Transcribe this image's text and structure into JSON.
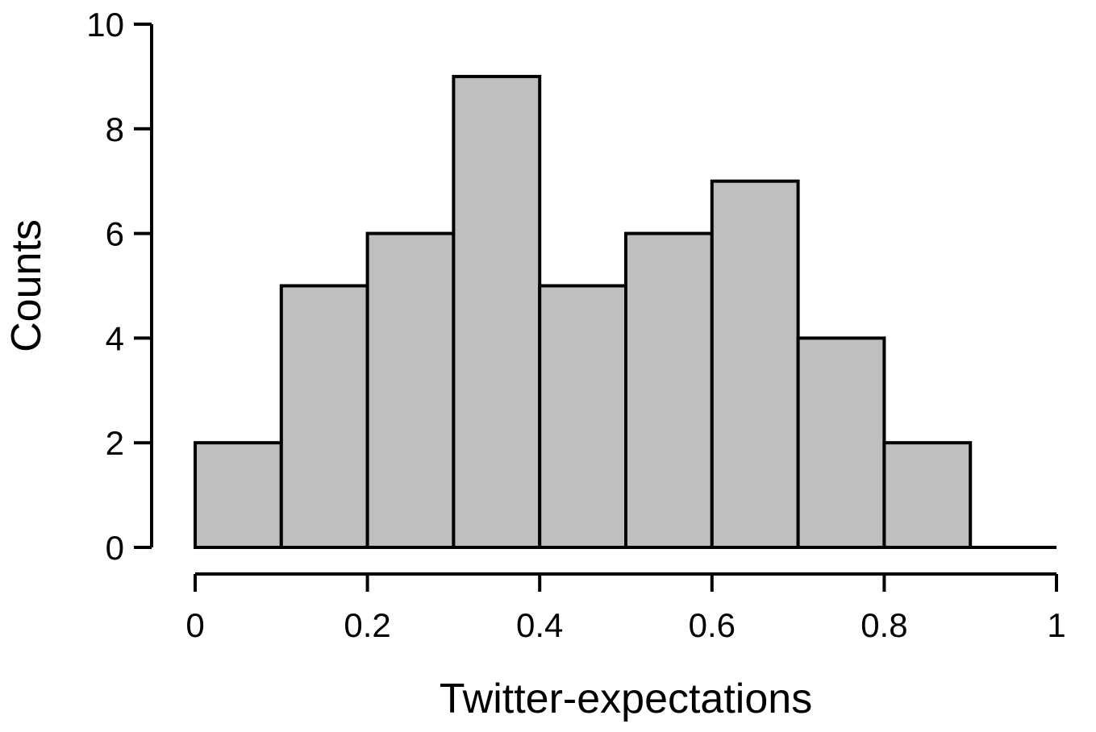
{
  "chart_data": {
    "type": "bar",
    "subtype": "histogram",
    "xlabel": "Twitter-expectations",
    "ylabel": "Counts",
    "bin_edges": [
      0,
      0.1,
      0.2,
      0.3,
      0.4,
      0.5,
      0.6,
      0.7,
      0.8,
      0.9,
      1.0
    ],
    "values": [
      2,
      5,
      6,
      9,
      5,
      6,
      7,
      4,
      2,
      0
    ],
    "xlim": [
      0,
      1
    ],
    "ylim": [
      0,
      10
    ],
    "x_ticks": [
      0,
      0.2,
      0.4,
      0.6,
      0.8,
      1
    ],
    "x_tick_labels": [
      "0",
      "0.2",
      "0.4",
      "0.6",
      "0.8",
      "1"
    ],
    "y_ticks": [
      0,
      2,
      4,
      6,
      8,
      10
    ],
    "y_tick_labels": [
      "0",
      "2",
      "4",
      "6",
      "8",
      "10"
    ],
    "bar_color": "#bfbfbf",
    "edge_color": "#000000",
    "grid": false,
    "legend": "none"
  }
}
